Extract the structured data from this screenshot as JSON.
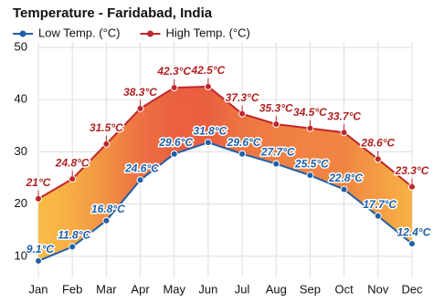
{
  "chart_data": {
    "type": "line",
    "title": "Temperature - Faridabad, India",
    "categories": [
      "Jan",
      "Feb",
      "Mar",
      "Apr",
      "May",
      "Jun",
      "Jul",
      "Aug",
      "Sep",
      "Oct",
      "Nov",
      "Dec"
    ],
    "series": [
      {
        "name": "Low Temp. (°C)",
        "color": "#1f5fa8",
        "values": [
          9.1,
          11.8,
          16.8,
          24.6,
          29.6,
          31.8,
          29.6,
          27.7,
          25.5,
          22.8,
          17.7,
          12.4
        ],
        "value_labels": [
          "9.1°C",
          "11.8°C",
          "16.8°C",
          "24.6°C",
          "29.6°C",
          "31.8°C",
          "29.6°C",
          "27.7°C",
          "25.5°C",
          "22.8°C",
          "17.7°C",
          "12.4°C"
        ]
      },
      {
        "name": "High Temp. (°C)",
        "color": "#c0262b",
        "values": [
          21,
          24.8,
          31.5,
          38.3,
          42.3,
          42.5,
          37.3,
          35.3,
          34.5,
          33.7,
          28.6,
          23.3
        ],
        "value_labels": [
          "21°C",
          "24.8°C",
          "31.5°C",
          "38.3°C",
          "42.3°C",
          "42.5°C",
          "37.3°C",
          "35.3°C",
          "34.5°C",
          "33.7°C",
          "28.6°C",
          "23.3°C"
        ]
      }
    ],
    "ylim": [
      6,
      51
    ],
    "yticks": [
      10,
      20,
      30,
      40,
      50
    ],
    "grid": true
  }
}
